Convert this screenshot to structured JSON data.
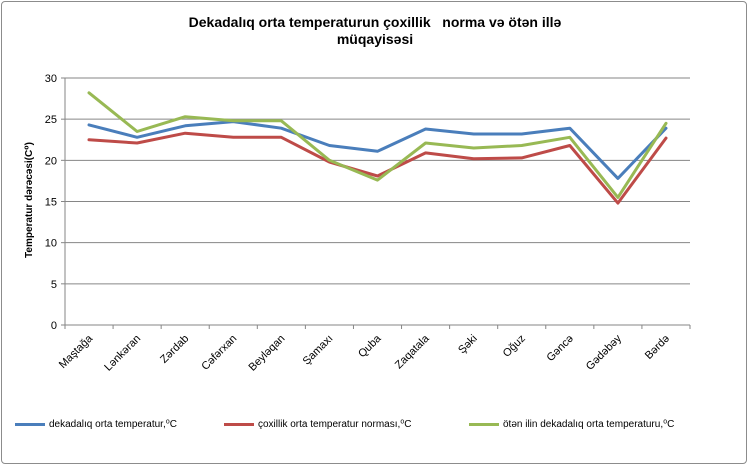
{
  "chart_data": {
    "type": "line",
    "title": [
      "Dekadalıq orta temperaturun çoxillik   norma və ötən illə",
      "müqayisəsi"
    ],
    "ylabel": "Temperatur dərəcəsi(C⁰)",
    "xlabel": "",
    "ylim": [
      0,
      30
    ],
    "yticks": [
      0,
      5,
      10,
      15,
      20,
      25,
      30
    ],
    "grid": true,
    "legend_position": "bottom",
    "categories": [
      "Maştağa",
      "Lənkəran",
      "Zərdab",
      "Cəfərxan",
      "Beyləqan",
      "Şamaxı",
      "Quba",
      "Zaqatala",
      "Şəki",
      "Oğuz",
      "Gəncə",
      "Gədəbəy",
      "Bərdə"
    ],
    "series": [
      {
        "name": "dekadalıq orta temperatur,⁰C",
        "color": "#4a7ebb",
        "values": [
          24.3,
          22.8,
          24.2,
          24.7,
          23.9,
          21.8,
          21.1,
          23.8,
          23.2,
          23.2,
          23.9,
          17.8,
          23.9
        ]
      },
      {
        "name": "çoxillik orta temperatur norması,⁰C",
        "color": "#be4b48",
        "values": [
          22.5,
          22.1,
          23.3,
          22.8,
          22.8,
          19.8,
          18.1,
          20.9,
          20.2,
          20.3,
          21.8,
          14.8,
          22.7
        ]
      },
      {
        "name": "ötən ilin dekadalıq orta temperaturu,⁰C",
        "color": "#98b954",
        "values": [
          28.2,
          23.5,
          25.3,
          24.8,
          24.8,
          20.0,
          17.6,
          22.1,
          21.5,
          21.8,
          22.8,
          15.5,
          24.5
        ]
      }
    ]
  }
}
